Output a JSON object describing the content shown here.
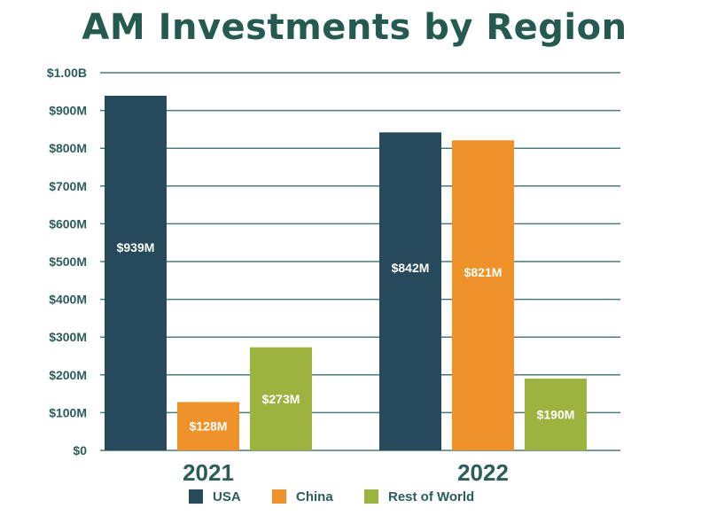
{
  "chart_data": {
    "type": "bar",
    "title": "AM Investments by Region",
    "categories": [
      "2021",
      "2022"
    ],
    "series": [
      {
        "name": "USA",
        "color": "#26495c",
        "values": [
          939,
          842
        ],
        "labels": [
          "$939M",
          "$842M"
        ]
      },
      {
        "name": "China",
        "color": "#f0922a",
        "values": [
          128,
          821
        ],
        "labels": [
          "$128M",
          "$821M"
        ]
      },
      {
        "name": "Rest of World",
        "color": "#9cb43f",
        "values": [
          273,
          190
        ],
        "labels": [
          "$273M",
          "$190M"
        ]
      }
    ],
    "yunit": "millions USD",
    "ylim": [
      0,
      1000
    ],
    "yticks": [
      {
        "value": 0,
        "label": "$0"
      },
      {
        "value": 100,
        "label": "$100M"
      },
      {
        "value": 200,
        "label": "$200M"
      },
      {
        "value": 300,
        "label": "$300M"
      },
      {
        "value": 400,
        "label": "$400M"
      },
      {
        "value": 500,
        "label": "$500M"
      },
      {
        "value": 600,
        "label": "$600M"
      },
      {
        "value": 700,
        "label": "$700M"
      },
      {
        "value": 800,
        "label": "$800M"
      },
      {
        "value": 900,
        "label": "$900M"
      },
      {
        "value": 1000,
        "label": "$1.00B"
      }
    ],
    "grid": true,
    "legend": "bottom",
    "gridline_color": "#4a7b74"
  }
}
